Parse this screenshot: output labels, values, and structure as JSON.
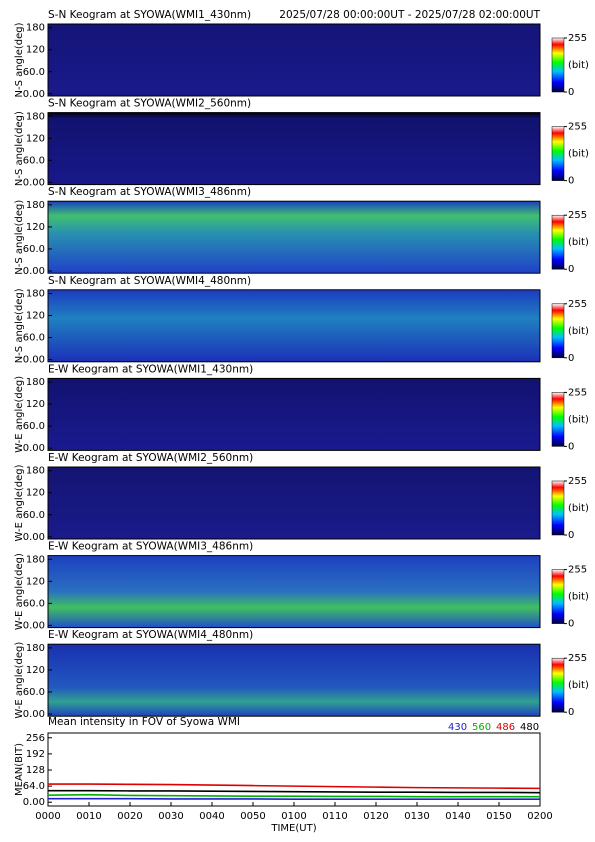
{
  "chart_data": [
    {
      "type": "keogram",
      "title": "S-N Keogram at SYOWA(WMI1_430nm)",
      "subtitle": "2025/07/28 00:00:00UT - 2025/07/28 02:00:00UT",
      "ylabel": "N-S angle(deg)",
      "ylim": [
        -6,
        190
      ],
      "yticks": [
        {
          "value": 0,
          "label": "0.00"
        },
        {
          "value": 60,
          "label": "60.0"
        },
        120,
        180
      ],
      "colorbar": {
        "lim": [
          0,
          255
        ],
        "ticks": [
          0,
          255
        ],
        "label": "(bit)"
      }
    },
    {
      "type": "keogram",
      "title": "S-N Keogram at SYOWA(WMI2_560nm)",
      "ylabel": "N-S angle(deg)",
      "ylim": [
        -6,
        190
      ],
      "yticks": [
        {
          "value": 0,
          "label": "0.00"
        },
        {
          "value": 60,
          "label": "60.0"
        },
        120,
        180
      ],
      "colorbar": {
        "lim": [
          0,
          255
        ],
        "ticks": [
          0,
          255
        ],
        "label": "(bit)"
      }
    },
    {
      "type": "keogram",
      "title": "S-N Keogram at SYOWA(WMI3_486nm)",
      "ylabel": "N-S angle(deg)",
      "ylim": [
        -6,
        190
      ],
      "yticks": [
        {
          "value": 0,
          "label": "0.00"
        },
        {
          "value": 60,
          "label": "60.0"
        },
        120,
        180
      ],
      "colorbar": {
        "lim": [
          0,
          255
        ],
        "ticks": [
          0,
          255
        ],
        "label": "(bit)"
      }
    },
    {
      "type": "keogram",
      "title": "S-N Keogram at SYOWA(WMI4_480nm)",
      "ylabel": "N-S angle(deg)",
      "ylim": [
        -6,
        190
      ],
      "yticks": [
        {
          "value": 0,
          "label": "0.00"
        },
        {
          "value": 60,
          "label": "60.0"
        },
        120,
        180
      ],
      "colorbar": {
        "lim": [
          0,
          255
        ],
        "ticks": [
          0,
          255
        ],
        "label": "(bit)"
      }
    },
    {
      "type": "keogram",
      "title": "E-W Keogram at SYOWA(WMI1_430nm)",
      "ylabel": "W-E angle(deg)",
      "ylim": [
        -6,
        190
      ],
      "yticks": [
        {
          "value": 0,
          "label": "0.00"
        },
        {
          "value": 60,
          "label": "60.0"
        },
        120,
        180
      ],
      "colorbar": {
        "lim": [
          0,
          255
        ],
        "ticks": [
          0,
          255
        ],
        "label": "(bit)"
      }
    },
    {
      "type": "keogram",
      "title": "E-W Keogram at SYOWA(WMI2_560nm)",
      "ylabel": "W-E angle(deg)",
      "ylim": [
        -6,
        190
      ],
      "yticks": [
        {
          "value": 0,
          "label": "0.00"
        },
        {
          "value": 60,
          "label": "60.0"
        },
        120,
        180
      ],
      "colorbar": {
        "lim": [
          0,
          255
        ],
        "ticks": [
          0,
          255
        ],
        "label": "(bit)"
      }
    },
    {
      "type": "keogram",
      "title": "E-W Keogram at SYOWA(WMI3_486nm)",
      "ylabel": "W-E angle(deg)",
      "ylim": [
        -6,
        190
      ],
      "yticks": [
        {
          "value": 0,
          "label": "0.00"
        },
        {
          "value": 60,
          "label": "60.0"
        },
        120,
        180
      ],
      "colorbar": {
        "lim": [
          0,
          255
        ],
        "ticks": [
          0,
          255
        ],
        "label": "(bit)"
      }
    },
    {
      "type": "keogram",
      "title": "E-W Keogram at SYOWA(WMI4_480nm)",
      "ylabel": "W-E angle(deg)",
      "ylim": [
        -6,
        190
      ],
      "yticks": [
        {
          "value": 0,
          "label": "0.00"
        },
        {
          "value": 60,
          "label": "60.0"
        },
        120,
        180
      ],
      "colorbar": {
        "lim": [
          0,
          255
        ],
        "ticks": [
          0,
          255
        ],
        "label": "(bit)"
      }
    },
    {
      "type": "line",
      "title": "Mean intensity in FOV of Syowa WMI",
      "xlabel": "TIME(UT)",
      "ylabel": "MEAN(BIT)",
      "x": [
        0,
        10,
        20,
        30,
        40,
        50,
        60,
        70,
        80,
        90,
        100,
        110,
        120
      ],
      "xlim": [
        0,
        120
      ],
      "xticks": [
        {
          "value": 0,
          "label": "0000"
        },
        {
          "value": 10,
          "label": "0010"
        },
        {
          "value": 20,
          "label": "0020"
        },
        {
          "value": 30,
          "label": "0030"
        },
        {
          "value": 40,
          "label": "0040"
        },
        {
          "value": 50,
          "label": "0050"
        },
        {
          "value": 60,
          "label": "0100"
        },
        {
          "value": 70,
          "label": "0110"
        },
        {
          "value": 80,
          "label": "0120"
        },
        {
          "value": 90,
          "label": "0130"
        },
        {
          "value": 100,
          "label": "0140"
        },
        {
          "value": 110,
          "label": "0150"
        },
        {
          "value": 120,
          "label": "0200"
        }
      ],
      "ylim": [
        -15,
        275
      ],
      "yticks": [
        {
          "value": 0,
          "label": "0.00"
        },
        {
          "value": 64,
          "label": "64.0"
        },
        128,
        192,
        256
      ],
      "series": [
        {
          "name": "430",
          "color": "#2222cc",
          "values": [
            14,
            14,
            14,
            13,
            13,
            13,
            12,
            12,
            12,
            12,
            12,
            12,
            12
          ]
        },
        {
          "name": "560",
          "color": "#00b000",
          "values": [
            28,
            30,
            27,
            26,
            25,
            24,
            24,
            23,
            23,
            22,
            22,
            22,
            22
          ]
        },
        {
          "name": "486",
          "color": "#dd0000",
          "values": [
            72,
            72,
            71,
            70,
            68,
            66,
            64,
            62,
            60,
            58,
            57,
            56,
            55
          ]
        },
        {
          "name": "480",
          "color": "#000000",
          "values": [
            46,
            46,
            45,
            45,
            44,
            43,
            42,
            41,
            40,
            40,
            39,
            39,
            38
          ]
        }
      ]
    }
  ]
}
